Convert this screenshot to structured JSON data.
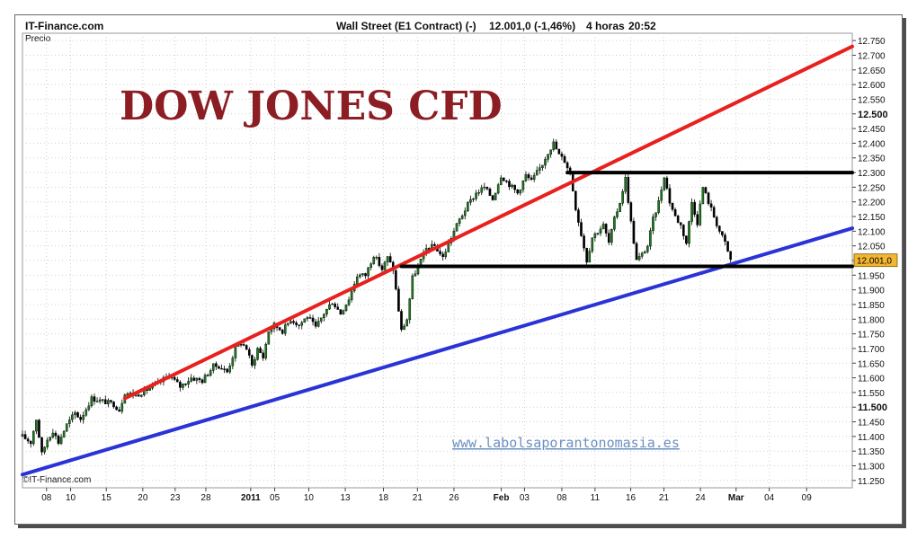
{
  "header": {
    "site": "IT-Finance.com",
    "instrument": "Wall Street (E1 Contract) (-)",
    "quote": "12.001,0 (-1,46%)",
    "timeframe": "4 horas",
    "time": "20:52"
  },
  "panel_label": "Precio",
  "footer_logo": "©IT-Finance.com",
  "overlay_title": "DOW JONES CFD",
  "watermark": "www.labolsaporantonomasia.es",
  "last_price_label": "12.001,0",
  "colors": {
    "background": "#ffffff",
    "grid": "#cfcfcf",
    "candle_up": "#1d7a1d",
    "candle_down": "#000000",
    "resistance_line": "#e8201e",
    "support_line": "#2a33d6",
    "channel_lines": "#000000",
    "title": "#8b1d23",
    "last_price_box": "#f2b632"
  },
  "chart_data": {
    "type": "candlestick",
    "title": "Wall Street (E1 Contract) (-) 12.001,0 (-1,46%) 4 horas 20:52",
    "ylabel": "Precio",
    "ylim": [
      11225,
      12775
    ],
    "y_ticks": [
      "12.750",
      "12.700",
      "12.650",
      "12.600",
      "12.550",
      "12.500",
      "12.450",
      "12.400",
      "12.350",
      "12.300",
      "12.250",
      "12.200",
      "12.150",
      "12.100",
      "12.050",
      "12.000",
      "11.950",
      "11.900",
      "11.850",
      "11.800",
      "11.750",
      "11.700",
      "11.650",
      "11.600",
      "11.550",
      "11.500",
      "11.450",
      "11.400",
      "11.350",
      "11.300",
      "11.250"
    ],
    "y_ticks_bold": [
      "12.500",
      "11.500"
    ],
    "x_labels": [
      "08",
      "10",
      "15",
      "20",
      "23",
      "28",
      "2011",
      "05",
      "10",
      "13",
      "18",
      "21",
      "26",
      "Feb",
      "03",
      "08",
      "11",
      "16",
      "21",
      "24",
      "Mar",
      "04",
      "09"
    ],
    "x_labels_bold": [
      "2011",
      "Feb",
      "Mar"
    ],
    "price_path": [
      [
        0,
        11400
      ],
      [
        3,
        11380
      ],
      [
        5,
        11460
      ],
      [
        7,
        11340
      ],
      [
        9,
        11390
      ],
      [
        11,
        11420
      ],
      [
        13,
        11380
      ],
      [
        16,
        11440
      ],
      [
        19,
        11480
      ],
      [
        21,
        11460
      ],
      [
        25,
        11530
      ],
      [
        29,
        11520
      ],
      [
        33,
        11510
      ],
      [
        35,
        11490
      ],
      [
        37,
        11550
      ],
      [
        41,
        11540
      ],
      [
        45,
        11560
      ],
      [
        49,
        11580
      ],
      [
        53,
        11610
      ],
      [
        57,
        11570
      ],
      [
        61,
        11600
      ],
      [
        65,
        11590
      ],
      [
        69,
        11640
      ],
      [
        71,
        11640
      ],
      [
        74,
        11620
      ],
      [
        77,
        11700
      ],
      [
        79,
        11720
      ],
      [
        81,
        11700
      ],
      [
        83,
        11640
      ],
      [
        85,
        11700
      ],
      [
        87,
        11670
      ],
      [
        89,
        11760
      ],
      [
        91,
        11780
      ],
      [
        94,
        11760
      ],
      [
        97,
        11800
      ],
      [
        100,
        11780
      ],
      [
        103,
        11810
      ],
      [
        106,
        11770
      ],
      [
        109,
        11820
      ],
      [
        112,
        11860
      ],
      [
        115,
        11820
      ],
      [
        118,
        11870
      ],
      [
        121,
        11950
      ],
      [
        124,
        11950
      ],
      [
        127,
        12020
      ],
      [
        130,
        11970
      ],
      [
        132,
        12010
      ],
      [
        134,
        11970
      ],
      [
        137,
        11760
      ],
      [
        139,
        11800
      ],
      [
        141,
        11940
      ],
      [
        143,
        11980
      ],
      [
        146,
        12040
      ],
      [
        149,
        12050
      ],
      [
        152,
        12010
      ],
      [
        155,
        12080
      ],
      [
        158,
        12140
      ],
      [
        161,
        12190
      ],
      [
        164,
        12230
      ],
      [
        167,
        12250
      ],
      [
        170,
        12210
      ],
      [
        173,
        12290
      ],
      [
        176,
        12260
      ],
      [
        179,
        12230
      ],
      [
        182,
        12290
      ],
      [
        184,
        12270
      ],
      [
        186,
        12300
      ],
      [
        188,
        12330
      ],
      [
        190,
        12370
      ],
      [
        192,
        12400
      ],
      [
        194,
        12360
      ],
      [
        196,
        12340
      ],
      [
        198,
        12300
      ],
      [
        200,
        12180
      ],
      [
        202,
        12090
      ],
      [
        204,
        12000
      ],
      [
        206,
        12080
      ],
      [
        208,
        12100
      ],
      [
        210,
        12120
      ],
      [
        212,
        12060
      ],
      [
        214,
        12140
      ],
      [
        216,
        12200
      ],
      [
        218,
        12280
      ],
      [
        220,
        12130
      ],
      [
        222,
        12000
      ],
      [
        224,
        12020
      ],
      [
        226,
        12050
      ],
      [
        228,
        12140
      ],
      [
        230,
        12200
      ],
      [
        232,
        12290
      ],
      [
        234,
        12200
      ],
      [
        236,
        12150
      ],
      [
        238,
        12120
      ],
      [
        240,
        12060
      ],
      [
        242,
        12200
      ],
      [
        244,
        12130
      ],
      [
        246,
        12250
      ],
      [
        248,
        12200
      ],
      [
        250,
        12150
      ],
      [
        252,
        12100
      ],
      [
        254,
        12060
      ],
      [
        256,
        12001
      ]
    ],
    "lines": [
      {
        "name": "resistance",
        "from": [
          37,
          11530
        ],
        "to": [
          300,
          12730
        ]
      },
      {
        "name": "support",
        "from": [
          0,
          11270
        ],
        "to": [
          300,
          12110
        ]
      },
      {
        "name": "channel_top",
        "from": [
          197,
          12300
        ],
        "to": [
          300,
          12300
        ]
      },
      {
        "name": "channel_bottom",
        "from": [
          137,
          11980
        ],
        "to": [
          300,
          11980
        ]
      }
    ],
    "last_price": 12001,
    "grid": true
  }
}
